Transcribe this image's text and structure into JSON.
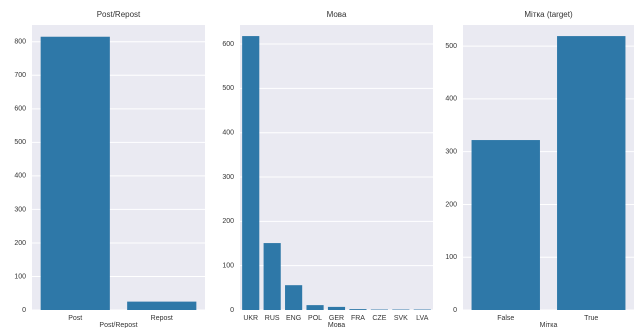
{
  "chart_data": [
    {
      "type": "bar",
      "title": "Post/Repost",
      "xlabel": "Post/Repost",
      "categories": [
        "Post",
        "Repost"
      ],
      "values": [
        815,
        25
      ],
      "color": "#2e78a8",
      "ylim": [
        0,
        850
      ],
      "yticks": [
        0,
        100,
        200,
        300,
        400,
        500,
        600,
        700,
        800
      ],
      "grid": true
    },
    {
      "type": "bar",
      "title": "Мова",
      "xlabel": "Мова",
      "categories": [
        "UKR",
        "RUS",
        "ENG",
        "POL",
        "GER",
        "FRA",
        "CZE",
        "SVK",
        "LVA"
      ],
      "values": [
        618,
        151,
        56,
        11,
        7,
        2,
        1,
        1,
        1
      ],
      "color": "#2e78a8",
      "ylim": [
        0,
        643
      ],
      "yticks": [
        0,
        100,
        200,
        300,
        400,
        500,
        600
      ],
      "grid": true
    },
    {
      "type": "bar",
      "title": "Мітка (target)",
      "xlabel": "Мітка",
      "categories": [
        "False",
        "True"
      ],
      "values": [
        322,
        519
      ],
      "color": "#2e78a8",
      "ylim": [
        0,
        540
      ],
      "yticks": [
        0,
        100,
        200,
        300,
        400,
        500
      ],
      "grid": true
    }
  ]
}
